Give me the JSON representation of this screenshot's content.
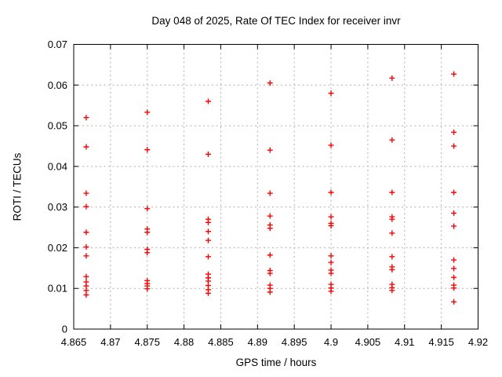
{
  "chart_data": {
    "type": "scatter",
    "title": "Day 048 of 2025, Rate Of TEC Index for receiver invr",
    "xlabel": "GPS time / hours",
    "ylabel": "ROTI / TECUs",
    "xlim": [
      4.865,
      4.92
    ],
    "ylim": [
      0,
      0.07
    ],
    "grid": true,
    "legend": "none",
    "marker": {
      "shape": "plus",
      "color": "#ff0000",
      "size": 7
    },
    "colors": {
      "grid": "#b0b0b0",
      "axis": "#000000",
      "background": "#ffffff"
    },
    "x_ticks": [
      {
        "v": 4.865,
        "label": "4.865"
      },
      {
        "v": 4.87,
        "label": "4.87"
      },
      {
        "v": 4.875,
        "label": "4.875"
      },
      {
        "v": 4.88,
        "label": "4.88"
      },
      {
        "v": 4.885,
        "label": "4.885"
      },
      {
        "v": 4.89,
        "label": "4.89"
      },
      {
        "v": 4.895,
        "label": "4.895"
      },
      {
        "v": 4.9,
        "label": "4.9"
      },
      {
        "v": 4.905,
        "label": "4.905"
      },
      {
        "v": 4.91,
        "label": "4.91"
      },
      {
        "v": 4.915,
        "label": "4.915"
      },
      {
        "v": 4.92,
        "label": "4.92"
      }
    ],
    "y_ticks": [
      {
        "v": 0,
        "label": "0"
      },
      {
        "v": 0.01,
        "label": "0.01"
      },
      {
        "v": 0.02,
        "label": "0.02"
      },
      {
        "v": 0.03,
        "label": "0.03"
      },
      {
        "v": 0.04,
        "label": "0.04"
      },
      {
        "v": 0.05,
        "label": "0.05"
      },
      {
        "v": 0.06,
        "label": "0.06"
      },
      {
        "v": 0.07,
        "label": "0.07"
      }
    ],
    "series": [
      {
        "name": "ROTI",
        "color": "#ff0000",
        "columns": [
          {
            "x": 4.8667,
            "y_values": [
              0.052,
              0.0448,
              0.0334,
              0.0301,
              0.0238,
              0.0202,
              0.018,
              0.0129,
              0.0116,
              0.0106,
              0.0095,
              0.0084
            ]
          },
          {
            "x": 4.875,
            "y_values": [
              0.0533,
              0.0441,
              0.0296,
              0.0246,
              0.0238,
              0.0196,
              0.0188,
              0.0119,
              0.0112,
              0.0106,
              0.0099
            ]
          },
          {
            "x": 4.8833,
            "y_values": [
              0.056,
              0.043,
              0.027,
              0.0262,
              0.024,
              0.0218,
              0.0178,
              0.0135,
              0.0126,
              0.0118,
              0.0107,
              0.0097,
              0.0088
            ]
          },
          {
            "x": 4.8917,
            "y_values": [
              0.0605,
              0.044,
              0.0334,
              0.0278,
              0.0256,
              0.0248,
              0.0182,
              0.0144,
              0.0137,
              0.0108,
              0.01,
              0.0091
            ]
          },
          {
            "x": 4.9,
            "y_values": [
              0.058,
              0.0452,
              0.0336,
              0.0276,
              0.026,
              0.0254,
              0.018,
              0.0164,
              0.0145,
              0.0137,
              0.011,
              0.0101,
              0.0093
            ]
          },
          {
            "x": 4.9083,
            "y_values": [
              0.0617,
              0.0465,
              0.0336,
              0.0276,
              0.027,
              0.0236,
              0.0178,
              0.0153,
              0.0146,
              0.011,
              0.0102,
              0.0095
            ]
          },
          {
            "x": 4.9167,
            "y_values": [
              0.0627,
              0.0484,
              0.045,
              0.0336,
              0.0285,
              0.0253,
              0.017,
              0.0149,
              0.0127,
              0.0108,
              0.0101,
              0.0067
            ]
          }
        ]
      }
    ]
  }
}
